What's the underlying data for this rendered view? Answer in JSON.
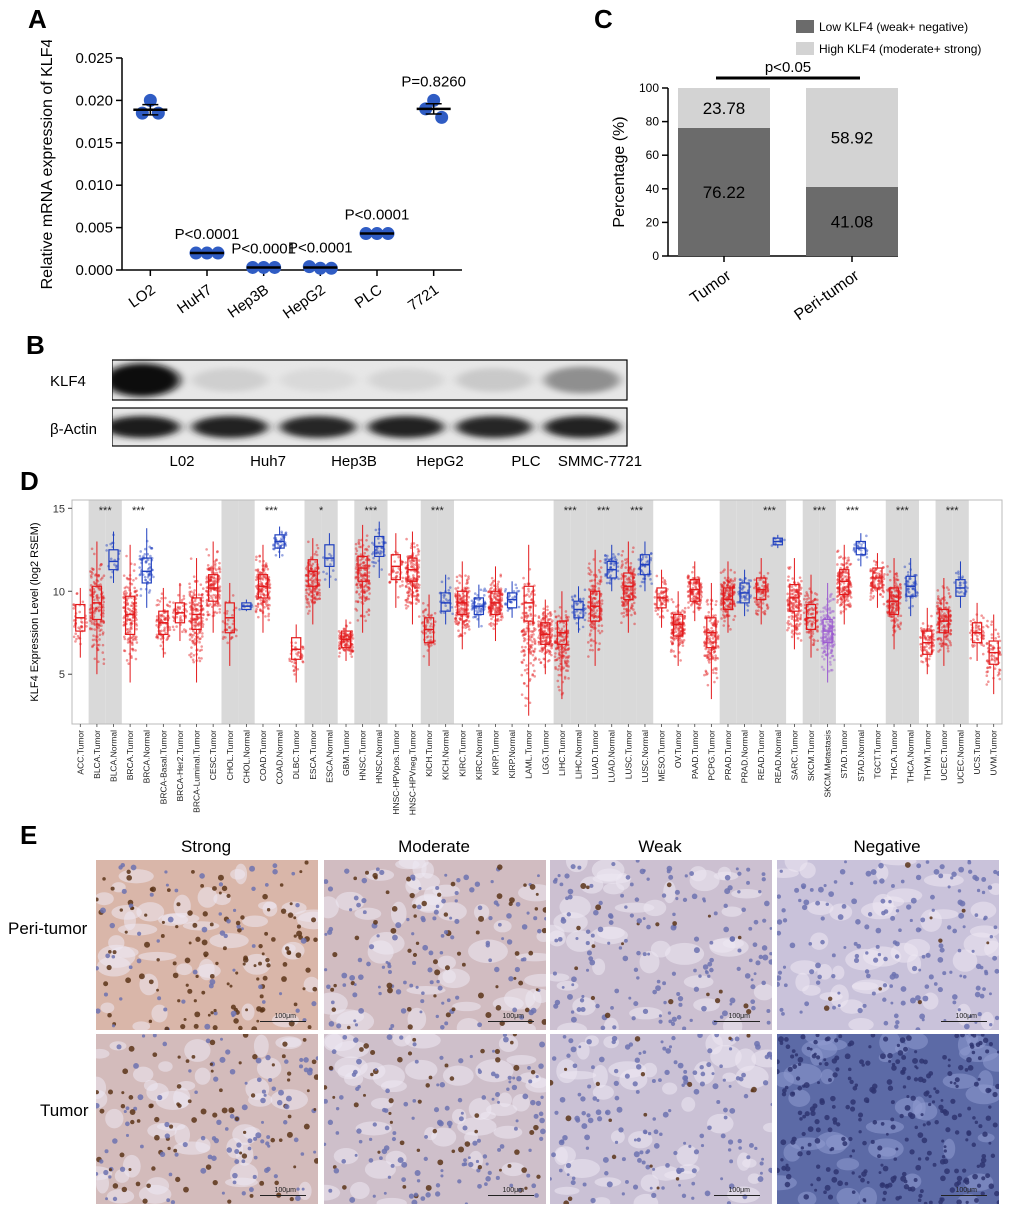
{
  "panel_labels": {
    "a": "A",
    "b": "B",
    "c": "C",
    "d": "D",
    "e": "E"
  },
  "chart_data": [
    {
      "id": "A",
      "type": "scatter",
      "categories": [
        "LO2",
        "HuH7",
        "Hep3B",
        "HepG2",
        "PLC",
        "7721"
      ],
      "values": [
        [
          0.02,
          0.0185,
          0.0185
        ],
        [
          0.002,
          0.002,
          0.002
        ],
        [
          0.0003,
          0.0003,
          0.0003
        ],
        [
          0.0004,
          0.0002,
          0.0002
        ],
        [
          0.0043,
          0.0043,
          0.0043
        ],
        [
          0.02,
          0.019,
          0.018
        ]
      ],
      "means": [
        0.0189,
        0.002,
        0.0003,
        0.0003,
        0.0043,
        0.019
      ],
      "annotations": [
        "",
        "P<0.0001",
        "P<0.0001",
        "P<0.0001",
        "P<0.0001",
        "P=0.8260"
      ],
      "ylabel": "Relative mRNA expression of KLF4",
      "yticks": [
        "0.000",
        "0.005",
        "0.010",
        "0.015",
        "0.020",
        "0.025"
      ],
      "ylim": [
        0,
        0.025
      ],
      "color": "#2f5cc4"
    },
    {
      "id": "C",
      "type": "bar",
      "categories": [
        "Tumor",
        "Peri-tumor"
      ],
      "series": [
        {
          "name": "Low KLF4 (weak+ negative)",
          "values": [
            76.22,
            41.08
          ],
          "labels": [
            "76.22",
            "41.08"
          ],
          "color": "#6b6b6b"
        },
        {
          "name": "High KLF4 (moderate+ strong)",
          "values": [
            23.78,
            58.92
          ],
          "labels": [
            "23.78",
            "58.92"
          ],
          "color": "#d3d3d3"
        }
      ],
      "ylabel": "Percentage (%)",
      "yticks": [
        "0",
        "20",
        "40",
        "60",
        "80",
        "100"
      ],
      "ylim": [
        0,
        100
      ],
      "significance": "p<0.05",
      "legend_position": "top-right"
    },
    {
      "id": "D",
      "type": "box",
      "ylabel": "KLF4 Expression Level (log2 RSEM)",
      "yticks": [
        "5",
        "10",
        "15"
      ],
      "ylim": [
        2,
        15.5
      ],
      "tumor_color": "#e31a1c",
      "normal_color": "#1f3fbf",
      "metastasis_color": "#9b59d0",
      "groups": [
        {
          "label": "ACC.Tumor",
          "kind": "tumor",
          "q1": 7.6,
          "median": 8.4,
          "q3": 9.2,
          "lo": 6.0,
          "hi": 10.2,
          "n": 40,
          "shade": false
        },
        {
          "label": "BLCA.Tumor",
          "kind": "tumor",
          "q1": 8.3,
          "median": 9.3,
          "q3": 10.3,
          "lo": 5.0,
          "hi": 13.0,
          "n": 200,
          "shade": true,
          "sig": "***"
        },
        {
          "label": "BLCA.Normal",
          "kind": "normal",
          "q1": 11.3,
          "median": 11.8,
          "q3": 12.5,
          "lo": 10.5,
          "hi": 13.6,
          "n": 20,
          "shade": true
        },
        {
          "label": "BRCA.Tumor",
          "kind": "tumor",
          "q1": 7.4,
          "median": 8.6,
          "q3": 9.7,
          "lo": 4.5,
          "hi": 12.8,
          "n": 250,
          "shade": false,
          "sig": "***"
        },
        {
          "label": "BRCA.Normal",
          "kind": "normal",
          "q1": 10.5,
          "median": 11.2,
          "q3": 12.0,
          "lo": 9.0,
          "hi": 13.8,
          "n": 60,
          "shade": false
        },
        {
          "label": "BRCA-Basal.Tumor",
          "kind": "tumor",
          "q1": 7.4,
          "median": 8.1,
          "q3": 8.8,
          "lo": 6.0,
          "hi": 10.2,
          "n": 90,
          "shade": false
        },
        {
          "label": "BRCA-Her2.Tumor",
          "kind": "tumor",
          "q1": 8.1,
          "median": 8.7,
          "q3": 9.3,
          "lo": 7.0,
          "hi": 10.5,
          "n": 50,
          "shade": false
        },
        {
          "label": "BRCA-Luminal.Tumor",
          "kind": "tumor",
          "q1": 7.7,
          "median": 8.6,
          "q3": 9.6,
          "lo": 4.5,
          "hi": 12.0,
          "n": 200,
          "shade": false
        },
        {
          "label": "CESC.Tumor",
          "kind": "tumor",
          "q1": 9.4,
          "median": 10.2,
          "q3": 11.0,
          "lo": 7.5,
          "hi": 13.0,
          "n": 150,
          "shade": false
        },
        {
          "label": "CHOL.Tumor",
          "kind": "tumor",
          "q1": 7.5,
          "median": 8.4,
          "q3": 9.3,
          "lo": 5.5,
          "hi": 10.5,
          "n": 35,
          "shade": true
        },
        {
          "label": "CHOL.Normal",
          "kind": "normal",
          "q1": 8.9,
          "median": 9.1,
          "q3": 9.3,
          "lo": 8.8,
          "hi": 9.5,
          "n": 9,
          "shade": true
        },
        {
          "label": "COAD.Tumor",
          "kind": "tumor",
          "q1": 9.6,
          "median": 10.3,
          "q3": 11.0,
          "lo": 7.5,
          "hi": 12.8,
          "n": 200,
          "shade": false,
          "sig": "***"
        },
        {
          "label": "COAD.Normal",
          "kind": "normal",
          "q1": 12.6,
          "median": 13.0,
          "q3": 13.4,
          "lo": 12.0,
          "hi": 13.9,
          "n": 40,
          "shade": false
        },
        {
          "label": "DLBC.Tumor",
          "kind": "tumor",
          "q1": 5.9,
          "median": 6.5,
          "q3": 7.2,
          "lo": 4.5,
          "hi": 8.0,
          "n": 40,
          "shade": false
        },
        {
          "label": "ESCA.Tumor",
          "kind": "tumor",
          "q1": 10.3,
          "median": 11.2,
          "q3": 11.9,
          "lo": 8.0,
          "hi": 13.2,
          "n": 150,
          "shade": true,
          "sig": "*"
        },
        {
          "label": "ESCA.Normal",
          "kind": "normal",
          "q1": 11.5,
          "median": 12.0,
          "q3": 12.8,
          "lo": 10.2,
          "hi": 13.5,
          "n": 12,
          "shade": true
        },
        {
          "label": "GBM.Tumor",
          "kind": "tumor",
          "q1": 6.6,
          "median": 7.1,
          "q3": 7.6,
          "lo": 5.8,
          "hi": 8.3,
          "n": 120,
          "shade": false
        },
        {
          "label": "HNSC.Tumor",
          "kind": "tumor",
          "q1": 10.6,
          "median": 11.4,
          "q3": 12.1,
          "lo": 7.5,
          "hi": 14.0,
          "n": 250,
          "shade": true,
          "sig": "***"
        },
        {
          "label": "HNSC.Normal",
          "kind": "normal",
          "q1": 12.1,
          "median": 12.7,
          "q3": 13.3,
          "lo": 10.8,
          "hi": 14.2,
          "n": 40,
          "shade": true
        },
        {
          "label": "HNSC-HPVpos.Tumor",
          "kind": "tumor",
          "q1": 10.7,
          "median": 11.5,
          "q3": 12.2,
          "lo": 9.0,
          "hi": 13.5,
          "n": 40,
          "shade": false
        },
        {
          "label": "HNSC-HPVneg.Tumor",
          "kind": "tumor",
          "q1": 10.6,
          "median": 11.3,
          "q3": 12.0,
          "lo": 8.0,
          "hi": 13.6,
          "n": 200,
          "shade": false
        },
        {
          "label": "KICH.Tumor",
          "kind": "tumor",
          "q1": 6.9,
          "median": 7.7,
          "q3": 8.4,
          "lo": 5.5,
          "hi": 9.8,
          "n": 60,
          "shade": true,
          "sig": "***"
        },
        {
          "label": "KICH.Normal",
          "kind": "normal",
          "q1": 8.8,
          "median": 9.3,
          "q3": 9.9,
          "lo": 8.0,
          "hi": 11.0,
          "n": 25,
          "shade": true
        },
        {
          "label": "KIRC.Tumor",
          "kind": "tumor",
          "q1": 8.6,
          "median": 9.3,
          "q3": 10.0,
          "lo": 6.5,
          "hi": 11.8,
          "n": 250,
          "shade": false
        },
        {
          "label": "KIRC.Normal",
          "kind": "normal",
          "q1": 8.6,
          "median": 9.1,
          "q3": 9.6,
          "lo": 7.8,
          "hi": 10.4,
          "n": 60,
          "shade": false
        },
        {
          "label": "KIRP.Tumor",
          "kind": "tumor",
          "q1": 8.6,
          "median": 9.3,
          "q3": 10.0,
          "lo": 7.0,
          "hi": 11.5,
          "n": 150,
          "shade": false
        },
        {
          "label": "KIRP.Normal",
          "kind": "normal",
          "q1": 9.0,
          "median": 9.5,
          "q3": 9.9,
          "lo": 8.4,
          "hi": 10.6,
          "n": 30,
          "shade": false
        },
        {
          "label": "LAML.Tumor",
          "kind": "tumor",
          "q1": 8.2,
          "median": 9.3,
          "q3": 10.3,
          "lo": 2.5,
          "hi": 12.8,
          "n": 150,
          "shade": false
        },
        {
          "label": "LGG.Tumor",
          "kind": "tumor",
          "q1": 6.8,
          "median": 7.4,
          "q3": 8.1,
          "lo": 5.0,
          "hi": 9.5,
          "n": 250,
          "shade": false
        },
        {
          "label": "LIHC.Tumor",
          "kind": "tumor",
          "q1": 6.8,
          "median": 7.5,
          "q3": 8.2,
          "lo": 3.5,
          "hi": 10.0,
          "n": 220,
          "shade": true,
          "sig": "***"
        },
        {
          "label": "LIHC.Normal",
          "kind": "normal",
          "q1": 8.4,
          "median": 8.9,
          "q3": 9.4,
          "lo": 7.5,
          "hi": 10.3,
          "n": 40,
          "shade": true
        },
        {
          "label": "LUAD.Tumor",
          "kind": "tumor",
          "q1": 8.2,
          "median": 9.1,
          "q3": 10.0,
          "lo": 5.5,
          "hi": 12.5,
          "n": 250,
          "shade": true,
          "sig": "***"
        },
        {
          "label": "LUAD.Normal",
          "kind": "normal",
          "q1": 10.8,
          "median": 11.3,
          "q3": 11.8,
          "lo": 10.0,
          "hi": 12.8,
          "n": 50,
          "shade": true
        },
        {
          "label": "LUSC.Tumor",
          "kind": "tumor",
          "q1": 9.5,
          "median": 10.3,
          "q3": 11.1,
          "lo": 7.5,
          "hi": 13.0,
          "n": 250,
          "shade": true,
          "sig": "***"
        },
        {
          "label": "LUSC.Normal",
          "kind": "normal",
          "q1": 11.0,
          "median": 11.6,
          "q3": 12.2,
          "lo": 10.0,
          "hi": 13.0,
          "n": 45,
          "shade": true
        },
        {
          "label": "MESO.Tumor",
          "kind": "tumor",
          "q1": 9.0,
          "median": 9.6,
          "q3": 10.2,
          "lo": 7.8,
          "hi": 11.3,
          "n": 60,
          "shade": false
        },
        {
          "label": "OV.Tumor",
          "kind": "tumor",
          "q1": 7.3,
          "median": 8.0,
          "q3": 8.6,
          "lo": 5.5,
          "hi": 10.0,
          "n": 150,
          "shade": false
        },
        {
          "label": "PAAD.Tumor",
          "kind": "tumor",
          "q1": 9.4,
          "median": 10.1,
          "q3": 10.7,
          "lo": 8.2,
          "hi": 11.8,
          "n": 120,
          "shade": false
        },
        {
          "label": "PCPG.Tumor",
          "kind": "tumor",
          "q1": 6.6,
          "median": 7.5,
          "q3": 8.4,
          "lo": 3.5,
          "hi": 10.5,
          "n": 150,
          "shade": false
        },
        {
          "label": "PRAD.Tumor",
          "kind": "tumor",
          "q1": 8.9,
          "median": 9.5,
          "q3": 10.2,
          "lo": 7.5,
          "hi": 11.8,
          "n": 250,
          "shade": true
        },
        {
          "label": "PRAD.Normal",
          "kind": "normal",
          "q1": 9.3,
          "median": 9.9,
          "q3": 10.5,
          "lo": 8.5,
          "hi": 11.3,
          "n": 45,
          "shade": true
        },
        {
          "label": "READ.Tumor",
          "kind": "tumor",
          "q1": 9.5,
          "median": 10.1,
          "q3": 10.8,
          "lo": 8.0,
          "hi": 12.0,
          "n": 90,
          "shade": true,
          "sig": "***"
        },
        {
          "label": "READ.Normal",
          "kind": "normal",
          "q1": 12.8,
          "median": 13.0,
          "q3": 13.2,
          "lo": 12.6,
          "hi": 13.4,
          "n": 10,
          "shade": true
        },
        {
          "label": "SARC.Tumor",
          "kind": "tumor",
          "q1": 8.8,
          "median": 9.6,
          "q3": 10.4,
          "lo": 6.5,
          "hi": 12.0,
          "n": 150,
          "shade": false
        },
        {
          "label": "SKCM.Tumor",
          "kind": "tumor",
          "q1": 7.7,
          "median": 8.4,
          "q3": 9.2,
          "lo": 6.0,
          "hi": 11.0,
          "n": 100,
          "shade": true,
          "sig": "***"
        },
        {
          "label": "SKCM.Metastasis",
          "kind": "metastasis",
          "q1": 6.9,
          "median": 7.6,
          "q3": 8.3,
          "lo": 4.5,
          "hi": 10.5,
          "n": 200,
          "shade": true
        },
        {
          "label": "STAD.Tumor",
          "kind": "tumor",
          "q1": 9.8,
          "median": 10.6,
          "q3": 11.3,
          "lo": 8.0,
          "hi": 12.8,
          "n": 200,
          "shade": false,
          "sig": "***"
        },
        {
          "label": "STAD.Normal",
          "kind": "normal",
          "q1": 12.2,
          "median": 12.6,
          "q3": 13.0,
          "lo": 11.5,
          "hi": 13.5,
          "n": 30,
          "shade": false
        },
        {
          "label": "TGCT.Tumor",
          "kind": "tumor",
          "q1": 10.2,
          "median": 10.8,
          "q3": 11.4,
          "lo": 9.0,
          "hi": 12.3,
          "n": 90,
          "shade": false
        },
        {
          "label": "THCA.Tumor",
          "kind": "tumor",
          "q1": 8.6,
          "median": 9.4,
          "q3": 10.2,
          "lo": 6.5,
          "hi": 12.0,
          "n": 250,
          "shade": true,
          "sig": "***"
        },
        {
          "label": "THCA.Normal",
          "kind": "normal",
          "q1": 9.7,
          "median": 10.3,
          "q3": 10.9,
          "lo": 8.5,
          "hi": 12.0,
          "n": 50,
          "shade": true
        },
        {
          "label": "THYM.Tumor",
          "kind": "tumor",
          "q1": 6.2,
          "median": 6.9,
          "q3": 7.6,
          "lo": 5.0,
          "hi": 9.0,
          "n": 90,
          "shade": false
        },
        {
          "label": "UCEC.Tumor",
          "kind": "tumor",
          "q1": 7.5,
          "median": 8.2,
          "q3": 8.9,
          "lo": 5.5,
          "hi": 10.8,
          "n": 220,
          "shade": true,
          "sig": "***"
        },
        {
          "label": "UCEC.Normal",
          "kind": "normal",
          "q1": 9.7,
          "median": 10.2,
          "q3": 10.7,
          "lo": 9.0,
          "hi": 11.8,
          "n": 25,
          "shade": true
        },
        {
          "label": "UCS.Tumor",
          "kind": "tumor",
          "q1": 6.9,
          "median": 7.5,
          "q3": 8.1,
          "lo": 5.8,
          "hi": 9.3,
          "n": 50,
          "shade": false
        },
        {
          "label": "UVM.Tumor",
          "kind": "tumor",
          "q1": 5.6,
          "median": 6.3,
          "q3": 7.0,
          "lo": 3.8,
          "hi": 8.6,
          "n": 70,
          "shade": false
        }
      ]
    }
  ],
  "western_blot": {
    "rows": [
      {
        "label": "KLF4",
        "intensities": [
          0.95,
          0.12,
          0.08,
          0.1,
          0.15,
          0.4
        ]
      },
      {
        "label": "β-Actin",
        "intensities": [
          0.9,
          0.88,
          0.85,
          0.87,
          0.86,
          0.88
        ]
      }
    ],
    "lanes": [
      "L02",
      "Huh7",
      "Hep3B",
      "HepG2",
      "PLC",
      "SMMC-7721"
    ]
  },
  "ihc": {
    "columns": [
      "Strong",
      "Moderate",
      "Weak",
      "Negative"
    ],
    "rows": [
      "Peri-tumor",
      "Tumor"
    ],
    "scale_label": "100μm",
    "brown_intensity": [
      [
        0.85,
        0.45,
        0.18,
        0.04
      ],
      [
        0.55,
        0.3,
        0.12,
        0.0
      ]
    ]
  }
}
